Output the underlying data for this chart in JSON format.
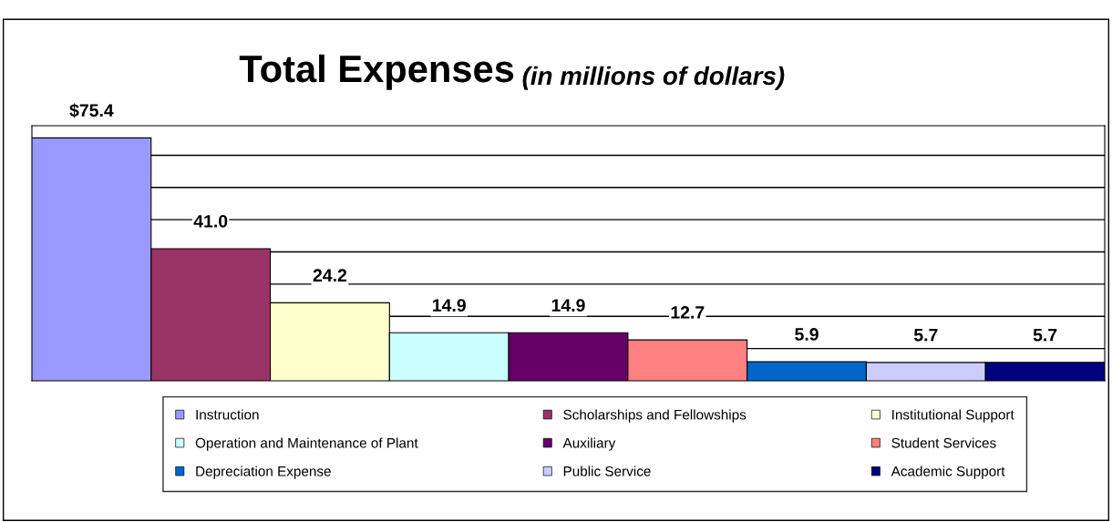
{
  "chart_data": {
    "type": "bar",
    "title": "Total Expenses",
    "subtitle": "(in millions of dollars)",
    "categories": [
      null
    ],
    "series": [
      {
        "name": "Instruction",
        "color": "#9999ff",
        "values": [
          75.4
        ],
        "value_labels": [
          "$75.4"
        ]
      },
      {
        "name": "Scholarships and Fellowships",
        "color": "#993366",
        "values": [
          41.0
        ],
        "value_labels": [
          "41.0"
        ]
      },
      {
        "name": "Institutional Support",
        "color": "#ffffcc",
        "values": [
          24.2
        ],
        "value_labels": [
          "24.2"
        ]
      },
      {
        "name": "Operation and Maintenance of Plant",
        "color": "#ccffff",
        "values": [
          14.9
        ],
        "value_labels": [
          "14.9"
        ]
      },
      {
        "name": "Auxiliary",
        "color": "#660066",
        "values": [
          14.9
        ],
        "value_labels": [
          "14.9"
        ]
      },
      {
        "name": "Student Services",
        "color": "#ff8080",
        "values": [
          12.7
        ],
        "value_labels": [
          "12.7"
        ]
      },
      {
        "name": "Depreciation Expense",
        "color": "#0066cc",
        "values": [
          5.9
        ],
        "value_labels": [
          "5.9"
        ]
      },
      {
        "name": "Public Service",
        "color": "#ccccff",
        "values": [
          5.7
        ],
        "value_labels": [
          "5.7"
        ]
      },
      {
        "name": "Academic Support",
        "color": "#000080",
        "values": [
          5.7
        ],
        "value_labels": [
          "5.7"
        ]
      }
    ],
    "grid": "y",
    "legend": "bottom",
    "tick_labels": false
  }
}
